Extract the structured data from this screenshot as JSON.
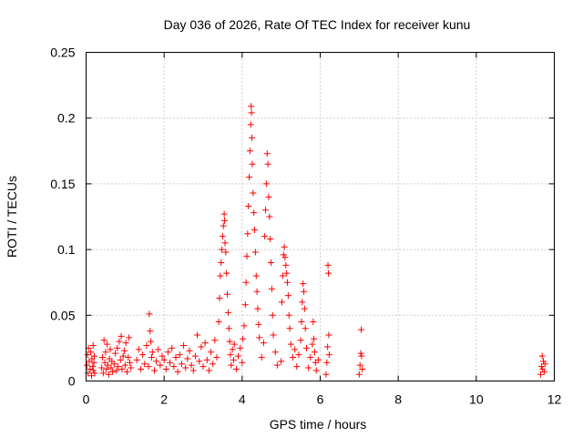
{
  "chart_data": {
    "type": "scatter",
    "title": "Day 036 of 2026, Rate Of TEC Index for receiver kunu",
    "xlabel": "GPS time / hours",
    "ylabel": "ROTI / TECUs",
    "xlim": [
      0,
      12
    ],
    "ylim": [
      0,
      0.25
    ],
    "grid": true,
    "marker": "+",
    "color": "#ff0000",
    "x_ticks": [
      0,
      2,
      4,
      6,
      8,
      10,
      12
    ],
    "x_tick_labels": [
      "0",
      "2",
      "4",
      "6",
      "8",
      "10",
      "12"
    ],
    "y_ticks": [
      0,
      0.05,
      0.1,
      0.15,
      0.2,
      0.25
    ],
    "y_tick_labels": [
      "0",
      "0.05",
      "0.1",
      "0.15",
      "0.2",
      "0.25"
    ],
    "series": [
      {
        "name": "ROTI",
        "points": [
          [
            0.02,
            0.012
          ],
          [
            0.04,
            0.02
          ],
          [
            0.05,
            0.006
          ],
          [
            0.06,
            0.025
          ],
          [
            0.08,
            0.015
          ],
          [
            0.1,
            0.009
          ],
          [
            0.12,
            0.022
          ],
          [
            0.14,
            0.004
          ],
          [
            0.15,
            0.017
          ],
          [
            0.17,
            0.011
          ],
          [
            0.18,
            0.027
          ],
          [
            0.19,
            0.008
          ],
          [
            0.2,
            0.014
          ],
          [
            0.21,
            0.019
          ],
          [
            0.22,
            0.006
          ],
          [
            0.4,
            0.01
          ],
          [
            0.42,
            0.018
          ],
          [
            0.44,
            0.006
          ],
          [
            0.46,
            0.031
          ],
          [
            0.48,
            0.014
          ],
          [
            0.5,
            0.022
          ],
          [
            0.52,
            0.009
          ],
          [
            0.54,
            0.028
          ],
          [
            0.56,
            0.012
          ],
          [
            0.58,
            0.005
          ],
          [
            0.6,
            0.017
          ],
          [
            0.62,
            0.024
          ],
          [
            0.64,
            0.01
          ],
          [
            0.66,
            0.015
          ],
          [
            0.68,
            0.007
          ],
          [
            0.72,
            0.013
          ],
          [
            0.75,
            0.021
          ],
          [
            0.78,
            0.008
          ],
          [
            0.8,
            0.025
          ],
          [
            0.82,
            0.011
          ],
          [
            0.85,
            0.03
          ],
          [
            0.88,
            0.016
          ],
          [
            0.9,
            0.034
          ],
          [
            0.92,
            0.009
          ],
          [
            0.95,
            0.019
          ],
          [
            0.98,
            0.023
          ],
          [
            1.0,
            0.012
          ],
          [
            1.02,
            0.029
          ],
          [
            1.05,
            0.007
          ],
          [
            1.08,
            0.018
          ],
          [
            1.1,
            0.033
          ],
          [
            1.12,
            0.014
          ],
          [
            1.15,
            0.01
          ],
          [
            1.3,
            0.016
          ],
          [
            1.35,
            0.024
          ],
          [
            1.4,
            0.009
          ],
          [
            1.45,
            0.02
          ],
          [
            1.5,
            0.013
          ],
          [
            1.55,
            0.027
          ],
          [
            1.6,
            0.011
          ],
          [
            1.62,
            0.051
          ],
          [
            1.64,
            0.038
          ],
          [
            1.66,
            0.03
          ],
          [
            1.68,
            0.018
          ],
          [
            1.7,
            0.022
          ],
          [
            1.75,
            0.008
          ],
          [
            1.8,
            0.015
          ],
          [
            1.85,
            0.024
          ],
          [
            1.9,
            0.012
          ],
          [
            1.95,
            0.019
          ],
          [
            2.0,
            0.016
          ],
          [
            2.05,
            0.009
          ],
          [
            2.1,
            0.022
          ],
          [
            2.15,
            0.014
          ],
          [
            2.2,
            0.025
          ],
          [
            2.25,
            0.011
          ],
          [
            2.3,
            0.018
          ],
          [
            2.35,
            0.007
          ],
          [
            2.4,
            0.02
          ],
          [
            2.45,
            0.013
          ],
          [
            2.5,
            0.027
          ],
          [
            2.55,
            0.01
          ],
          [
            2.6,
            0.017
          ],
          [
            2.65,
            0.023
          ],
          [
            2.7,
            0.012
          ],
          [
            2.75,
            0.008
          ],
          [
            2.8,
            0.019
          ],
          [
            2.85,
            0.035
          ],
          [
            2.9,
            0.015
          ],
          [
            2.95,
            0.026
          ],
          [
            3.0,
            0.011
          ],
          [
            3.05,
            0.029
          ],
          [
            3.1,
            0.016
          ],
          [
            3.15,
            0.008
          ],
          [
            3.2,
            0.022
          ],
          [
            3.25,
            0.013
          ],
          [
            3.3,
            0.031
          ],
          [
            3.35,
            0.018
          ],
          [
            3.4,
            0.045
          ],
          [
            3.42,
            0.063
          ],
          [
            3.44,
            0.08
          ],
          [
            3.46,
            0.09
          ],
          [
            3.48,
            0.1
          ],
          [
            3.5,
            0.11
          ],
          [
            3.52,
            0.118
          ],
          [
            3.54,
            0.127
          ],
          [
            3.55,
            0.122
          ],
          [
            3.56,
            0.105
          ],
          [
            3.58,
            0.098
          ],
          [
            3.6,
            0.082
          ],
          [
            3.62,
            0.066
          ],
          [
            3.64,
            0.052
          ],
          [
            3.66,
            0.04
          ],
          [
            3.68,
            0.03
          ],
          [
            3.7,
            0.02
          ],
          [
            3.72,
            0.012
          ],
          [
            3.75,
            0.024
          ],
          [
            3.78,
            0.016
          ],
          [
            3.8,
            0.028
          ],
          [
            3.85,
            0.009
          ],
          [
            3.9,
            0.019
          ],
          [
            3.95,
            0.025
          ],
          [
            4.0,
            0.014
          ],
          [
            4.02,
            0.032
          ],
          [
            4.05,
            0.042
          ],
          [
            4.08,
            0.058
          ],
          [
            4.1,
            0.075
          ],
          [
            4.12,
            0.095
          ],
          [
            4.14,
            0.112
          ],
          [
            4.16,
            0.133
          ],
          [
            4.18,
            0.155
          ],
          [
            4.2,
            0.175
          ],
          [
            4.22,
            0.195
          ],
          [
            4.23,
            0.209
          ],
          [
            4.24,
            0.204
          ],
          [
            4.25,
            0.185
          ],
          [
            4.26,
            0.165
          ],
          [
            4.28,
            0.143
          ],
          [
            4.3,
            0.128
          ],
          [
            4.32,
            0.115
          ],
          [
            4.34,
            0.098
          ],
          [
            4.36,
            0.08
          ],
          [
            4.38,
            0.068
          ],
          [
            4.4,
            0.055
          ],
          [
            4.42,
            0.043
          ],
          [
            4.44,
            0.033
          ],
          [
            4.5,
            0.018
          ],
          [
            4.55,
            0.029
          ],
          [
            4.58,
            0.11
          ],
          [
            4.6,
            0.13
          ],
          [
            4.62,
            0.15
          ],
          [
            4.64,
            0.173
          ],
          [
            4.66,
            0.165
          ],
          [
            4.68,
            0.14
          ],
          [
            4.7,
            0.125
          ],
          [
            4.72,
            0.108
          ],
          [
            4.74,
            0.09
          ],
          [
            4.76,
            0.07
          ],
          [
            4.78,
            0.05
          ],
          [
            4.8,
            0.035
          ],
          [
            4.85,
            0.022
          ],
          [
            4.9,
            0.012
          ],
          [
            5.0,
            0.015
          ],
          [
            5.02,
            0.06
          ],
          [
            5.04,
            0.08
          ],
          [
            5.06,
            0.096
          ],
          [
            5.08,
            0.102
          ],
          [
            5.1,
            0.094
          ],
          [
            5.12,
            0.088
          ],
          [
            5.14,
            0.082
          ],
          [
            5.16,
            0.075
          ],
          [
            5.18,
            0.065
          ],
          [
            5.2,
            0.05
          ],
          [
            5.22,
            0.04
          ],
          [
            5.25,
            0.028
          ],
          [
            5.3,
            0.018
          ],
          [
            5.35,
            0.024
          ],
          [
            5.4,
            0.011
          ],
          [
            5.45,
            0.02
          ],
          [
            5.5,
            0.031
          ],
          [
            5.52,
            0.045
          ],
          [
            5.54,
            0.06
          ],
          [
            5.56,
            0.074
          ],
          [
            5.58,
            0.068
          ],
          [
            5.6,
            0.055
          ],
          [
            5.62,
            0.04
          ],
          [
            5.65,
            0.025
          ],
          [
            5.7,
            0.01
          ],
          [
            5.75,
            0.018
          ],
          [
            5.8,
            0.028
          ],
          [
            5.82,
            0.045
          ],
          [
            5.84,
            0.032
          ],
          [
            5.86,
            0.022
          ],
          [
            5.88,
            0.014
          ],
          [
            5.9,
            0.008
          ],
          [
            5.95,
            0.016
          ],
          [
            6.15,
            0.005
          ],
          [
            6.17,
            0.014
          ],
          [
            6.19,
            0.026
          ],
          [
            6.2,
            0.088
          ],
          [
            6.21,
            0.082
          ],
          [
            6.22,
            0.035
          ],
          [
            6.23,
            0.02
          ],
          [
            7.0,
            0.005
          ],
          [
            7.02,
            0.012
          ],
          [
            7.04,
            0.021
          ],
          [
            7.05,
            0.039
          ],
          [
            7.06,
            0.019
          ],
          [
            7.08,
            0.009
          ],
          [
            11.65,
            0.005
          ],
          [
            11.67,
            0.011
          ],
          [
            11.69,
            0.019
          ],
          [
            11.7,
            0.009
          ],
          [
            11.72,
            0.015
          ],
          [
            11.74,
            0.007
          ],
          [
            11.76,
            0.013
          ]
        ]
      }
    ]
  }
}
